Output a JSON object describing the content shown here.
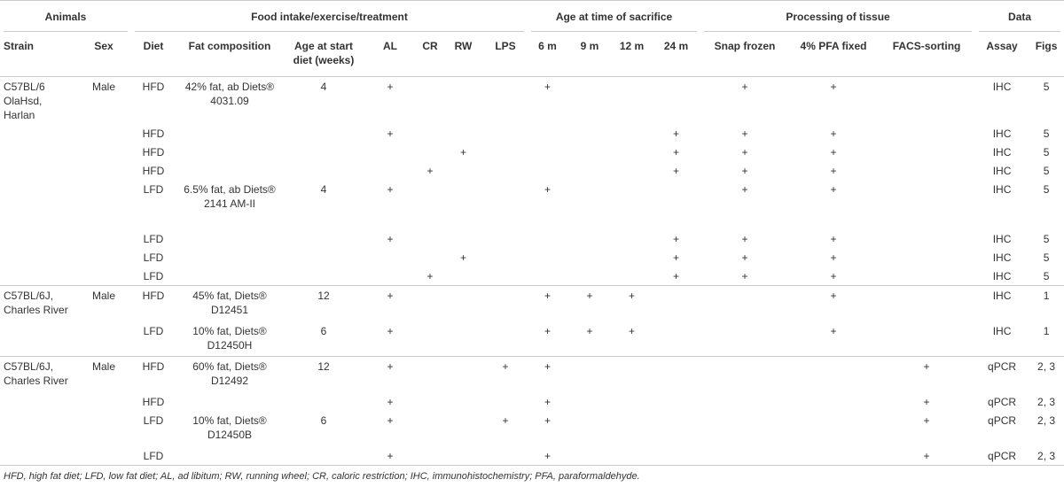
{
  "table": {
    "groups": [
      {
        "label": "Animals",
        "span": 2
      },
      {
        "label": "Food intake/exercise/treatment",
        "span": 7
      },
      {
        "label": "Age at time of sacrifice",
        "span": 4
      },
      {
        "label": "Processing of tissue",
        "span": 3
      },
      {
        "label": "Data",
        "span": 2
      }
    ],
    "columns": [
      "Strain",
      "Sex",
      "Diet",
      "Fat composition",
      "Age at start diet (weeks)",
      "AL",
      "CR",
      "RW",
      "LPS",
      "6 m",
      "9 m",
      "12 m",
      "24 m",
      "Snap frozen",
      "4% PFA fixed",
      "FACS-sorting",
      "Assay",
      "Figs"
    ],
    "rows": [
      [
        "C57BL/6 OlaHsd, Harlan",
        "Male",
        "HFD",
        "42% fat, ab Diets® 4031.09",
        "4",
        "+",
        null,
        null,
        null,
        "+",
        null,
        null,
        null,
        "+",
        "+",
        null,
        "IHC",
        "5"
      ],
      [
        null,
        null,
        "HFD",
        null,
        null,
        "+",
        null,
        null,
        null,
        null,
        null,
        null,
        "+",
        "+",
        "+",
        null,
        "IHC",
        "5"
      ],
      [
        null,
        null,
        "HFD",
        null,
        null,
        null,
        null,
        "+",
        null,
        null,
        null,
        null,
        "+",
        "+",
        "+",
        null,
        "IHC",
        "5"
      ],
      [
        null,
        null,
        "HFD",
        null,
        null,
        null,
        "+",
        null,
        null,
        null,
        null,
        null,
        "+",
        "+",
        "+",
        null,
        "IHC",
        "5"
      ],
      [
        null,
        null,
        "LFD",
        "6.5% fat, ab Diets® 2141 AM-II",
        "4",
        "+",
        null,
        null,
        null,
        "+",
        null,
        null,
        null,
        "+",
        "+",
        null,
        "IHC",
        "5"
      ],
      [
        null,
        null,
        "LFD",
        null,
        null,
        "+",
        null,
        null,
        null,
        null,
        null,
        null,
        "+",
        "+",
        "+",
        null,
        "IHC",
        "5"
      ],
      [
        null,
        null,
        "LFD",
        null,
        null,
        null,
        null,
        "+",
        null,
        null,
        null,
        null,
        "+",
        "+",
        "+",
        null,
        "IHC",
        "5"
      ],
      [
        null,
        null,
        "LFD",
        null,
        null,
        null,
        "+",
        null,
        null,
        null,
        null,
        null,
        "+",
        "+",
        "+",
        null,
        "IHC",
        "5"
      ],
      [
        "C57BL/6J, Charles River",
        "Male",
        "HFD",
        "45% fat, Diets® D12451",
        "12",
        "+",
        null,
        null,
        null,
        "+",
        "+",
        "+",
        null,
        null,
        "+",
        null,
        "IHC",
        "1"
      ],
      [
        null,
        null,
        "LFD",
        "10% fat, Diets® D12450H",
        "6",
        "+",
        null,
        null,
        null,
        "+",
        "+",
        "+",
        null,
        null,
        "+",
        null,
        "IHC",
        "1"
      ],
      [
        "C57BL/6J, Charles River",
        "Male",
        "HFD",
        "60% fat, Diets® D12492",
        "12",
        "+",
        null,
        null,
        "+",
        "+",
        null,
        null,
        null,
        null,
        null,
        "+",
        "qPCR",
        "2, 3"
      ],
      [
        null,
        null,
        "HFD",
        null,
        null,
        "+",
        null,
        null,
        null,
        "+",
        null,
        null,
        null,
        null,
        null,
        "+",
        "qPCR",
        "2, 3"
      ],
      [
        null,
        null,
        "LFD",
        "10% fat, Diets® D12450B",
        "6",
        "+",
        null,
        null,
        "+",
        "+",
        null,
        null,
        null,
        null,
        null,
        "+",
        "qPCR",
        "2, 3"
      ],
      [
        null,
        null,
        "LFD",
        null,
        null,
        "+",
        null,
        null,
        null,
        "+",
        null,
        null,
        null,
        null,
        null,
        "+",
        "qPCR",
        "2, 3"
      ]
    ],
    "footnote": "HFD, high fat diet; LFD, low fat diet; AL, ad libitum; RW, running wheel; CR, caloric restriction; IHC, immunohistochemistry; PFA, paraformaldehyde."
  }
}
